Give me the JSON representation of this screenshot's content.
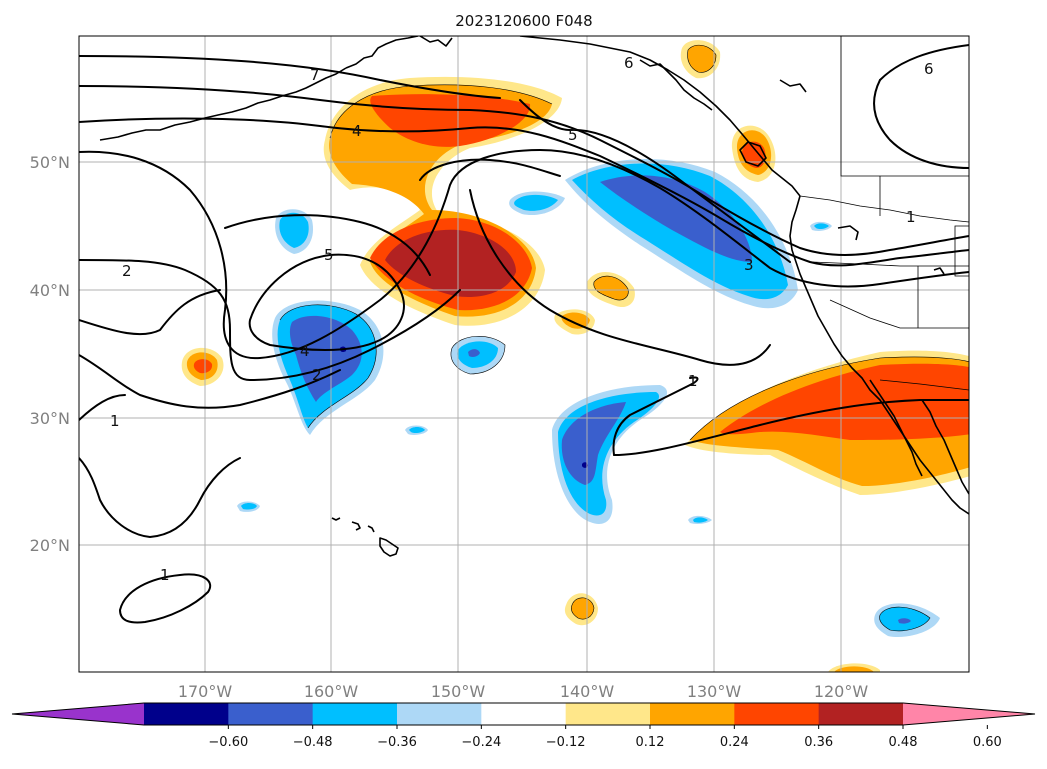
{
  "title": "2023120600 F048",
  "longitude_labels": [
    "170°W",
    "160°W",
    "150°W",
    "140°W",
    "130°W",
    "120°W"
  ],
  "latitude_labels": [
    "50°N",
    "40°N",
    "30°N",
    "20°N"
  ],
  "colorbar": {
    "ticks": [
      "−0.60",
      "−0.48",
      "−0.36",
      "−0.24",
      "−0.12",
      "0.12",
      "0.24",
      "0.36",
      "0.48",
      "0.60"
    ],
    "colors": [
      "#9933cc",
      "#00008b",
      "#3a5fcd",
      "#00bfff",
      "#add8f6",
      "#ffffff",
      "#ffe78a",
      "#ffa500",
      "#ff4500",
      "#b22222",
      "#ff85a8"
    ]
  },
  "contour_labels": [
    "7",
    "6",
    "6",
    "5",
    "5",
    "4",
    "4",
    "3",
    "2",
    "2",
    "1",
    "1",
    "1",
    "1"
  ],
  "map": {
    "region": "North Pacific",
    "lon_range": [
      -180,
      -110
    ],
    "lat_range": [
      10,
      60
    ]
  }
}
